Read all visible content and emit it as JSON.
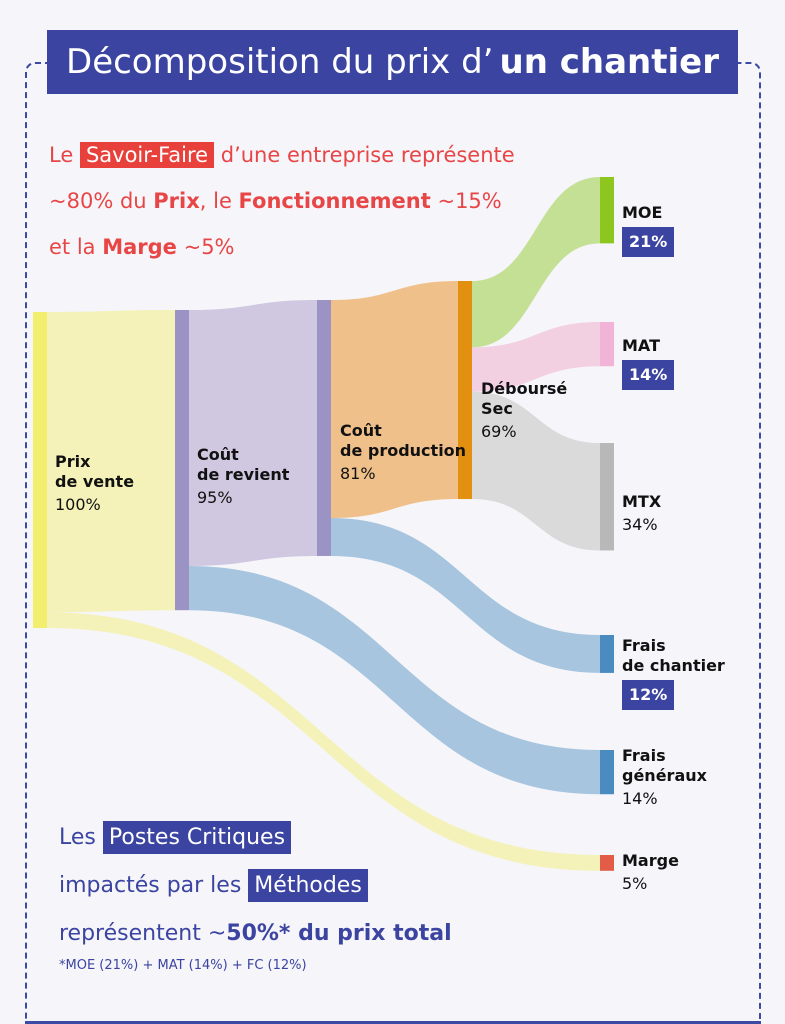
{
  "title": {
    "part1": "Décomposition du prix d’",
    "part2": "un chantier"
  },
  "intro": {
    "l1_a": "Le ",
    "l1_hl": "Savoir-Faire",
    "l1_b": " d’une entreprise représente",
    "l2_a": "~80% du ",
    "l2_b1": "Prix",
    "l2_c": ", le ",
    "l2_b2": "Fonctionnement",
    "l2_d": " ~15%",
    "l3_a": "et la ",
    "l3_b": "Marge",
    "l3_c": " ~5%"
  },
  "nodes": {
    "prix": {
      "name": "Prix\nde vente",
      "pct": "100%"
    },
    "revient": {
      "name": "Coût\nde revient",
      "pct": "95%"
    },
    "prod": {
      "name": "Coût\nde production",
      "pct": "81%"
    },
    "debourse": {
      "name": "Déboursé\nSec",
      "pct": "69%"
    },
    "moe": {
      "name": "MOE",
      "pct": "21%"
    },
    "mat": {
      "name": "MAT",
      "pct": "14%"
    },
    "mtx": {
      "name": "MTX",
      "pct": "34%"
    },
    "frais_ch": {
      "name": "Frais\nde chantier",
      "pct": "12%"
    },
    "frais_gen": {
      "name": "Frais\ngénéraux",
      "pct": "14%"
    },
    "marge": {
      "name": "Marge",
      "pct": "5%"
    }
  },
  "flows": [
    {
      "from": "prix",
      "to": "revient",
      "value": 95
    },
    {
      "from": "prix",
      "to": "marge",
      "value": 5
    },
    {
      "from": "revient",
      "to": "prod",
      "value": 81
    },
    {
      "from": "revient",
      "to": "frais_gen",
      "value": 14
    },
    {
      "from": "prod",
      "to": "debourse",
      "value": 69
    },
    {
      "from": "prod",
      "to": "frais_ch",
      "value": 12
    },
    {
      "from": "debourse",
      "to": "moe",
      "value": 21
    },
    {
      "from": "debourse",
      "to": "mat",
      "value": 14
    },
    {
      "from": "debourse",
      "to": "mtx",
      "value": 34
    }
  ],
  "colors": {
    "title_bg": "#3b44a0",
    "accent_red": "#e8403a",
    "prix_bar": "#f2ee6e",
    "prix_band": "#f4f2b8",
    "revient_bar": "#9b93c4",
    "revient_band": "#cfc8e0",
    "prod_bar": "#e39010",
    "prod_band": "#f0c08a",
    "moe": "#8cc61e",
    "moe_band": "#c4e095",
    "mat": "#f2b4d6",
    "mat_band": "#f3cfe2",
    "mtx": "#b8b8b8",
    "mtx_band": "#dadada",
    "frais": "#4a8cc0",
    "frais_band": "#a7c5de",
    "marge": "#e25c48"
  },
  "footer": {
    "l1_a": "Les ",
    "l1_hl": "Postes Critiques",
    "l2_a": "impactés par les ",
    "l2_hl": "Méthodes",
    "l3_a": "représentent ~",
    "l3_b": "50%*",
    "l3_c": " du prix total",
    "note": "*MOE (21%) + MAT (14%) + FC (12%)"
  }
}
